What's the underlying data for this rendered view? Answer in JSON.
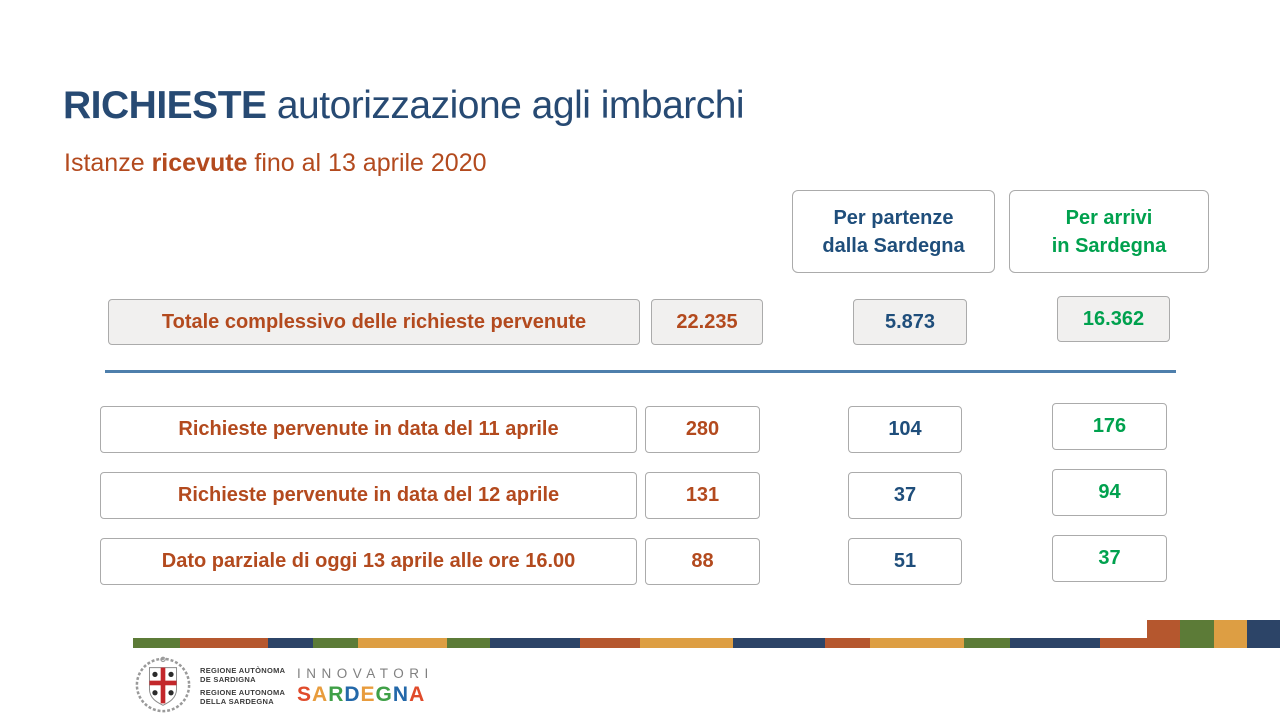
{
  "slide": {
    "title": {
      "emphasis": "RICHIESTE",
      "rest": " autorizzazione agli imbarchi"
    },
    "subtitle": {
      "pre": "Istanze ",
      "emphasis": "ricevute",
      "post": " fino al 13 aprile 2020"
    }
  },
  "columns": {
    "partenze": {
      "line1": "Per partenze",
      "line2": "dalla Sardegna",
      "color": "#1F4E7B"
    },
    "arrivi": {
      "line1": "Per arrivi",
      "line2": "in Sardegna",
      "color": "#00A14E"
    }
  },
  "total_row": {
    "label": "Totale complessivo delle richieste pervenute",
    "total": "22.235",
    "partenze": "5.873",
    "arrivi": "16.362"
  },
  "rows": [
    {
      "label": "Richieste pervenute in data del 11 aprile",
      "total": "280",
      "partenze": "104",
      "arrivi": "176"
    },
    {
      "label": "Richieste pervenute in data del 12 aprile",
      "total": "131",
      "partenze": "37",
      "arrivi": "94"
    },
    {
      "label": "Dato parziale di oggi 13 aprile alle ore 16.00",
      "total": "88",
      "partenze": "51",
      "arrivi": "37"
    }
  ],
  "footer": {
    "crest_lines": [
      "REGIONE AUTÒNOMA",
      "DE SARDIGNA",
      "REGIONE AUTONOMA",
      "DELLA SARDEGNA"
    ],
    "brand_top": "INNOVATORI",
    "brand_letters": [
      {
        "ch": "S",
        "color": "#E04B2B"
      },
      {
        "ch": "A",
        "color": "#E89C3D"
      },
      {
        "ch": "R",
        "color": "#3FA047"
      },
      {
        "ch": "D",
        "color": "#2368A9"
      },
      {
        "ch": "E",
        "color": "#E89C3D"
      },
      {
        "ch": "G",
        "color": "#3FA047"
      },
      {
        "ch": "N",
        "color": "#2368A9"
      },
      {
        "ch": "A",
        "color": "#E04B2B"
      }
    ],
    "stripe_segments": [
      {
        "color": "stripe_olive",
        "width": 47
      },
      {
        "color": "stripe_rust",
        "width": 88
      },
      {
        "color": "stripe_navy",
        "width": 45
      },
      {
        "color": "stripe_olive",
        "width": 45
      },
      {
        "color": "stripe_gold",
        "width": 89
      },
      {
        "color": "stripe_olive",
        "width": 43
      },
      {
        "color": "stripe_navy",
        "width": 90
      },
      {
        "color": "stripe_rust",
        "width": 60
      },
      {
        "color": "stripe_gold",
        "width": 93
      },
      {
        "color": "stripe_navy",
        "width": 92
      },
      {
        "color": "stripe_rust",
        "width": 45
      },
      {
        "color": "stripe_gold",
        "width": 94
      },
      {
        "color": "stripe_olive",
        "width": 46
      },
      {
        "color": "stripe_navy",
        "width": 90
      },
      {
        "color": "stripe_rust",
        "width": 47
      }
    ],
    "corner_blocks": [
      "stripe_rust",
      "stripe_olive",
      "stripe_gold",
      "stripe_navy"
    ]
  },
  "colors": {
    "navy_text": "#274A73",
    "rust": "#B34A1E",
    "blue": "#1F4E7B",
    "green": "#00A14E",
    "divider": "#4E7FAC",
    "box_border": "#ABABAB",
    "box_bg_gray": "#F1F0EF",
    "stripe_olive": "#5C7B37",
    "stripe_rust": "#B5572E",
    "stripe_gold": "#DD9E43",
    "stripe_navy": "#2C4467",
    "footer_gray": "#808080",
    "crest_text": "#3C3C3C",
    "crest_red": "#C3272B"
  }
}
